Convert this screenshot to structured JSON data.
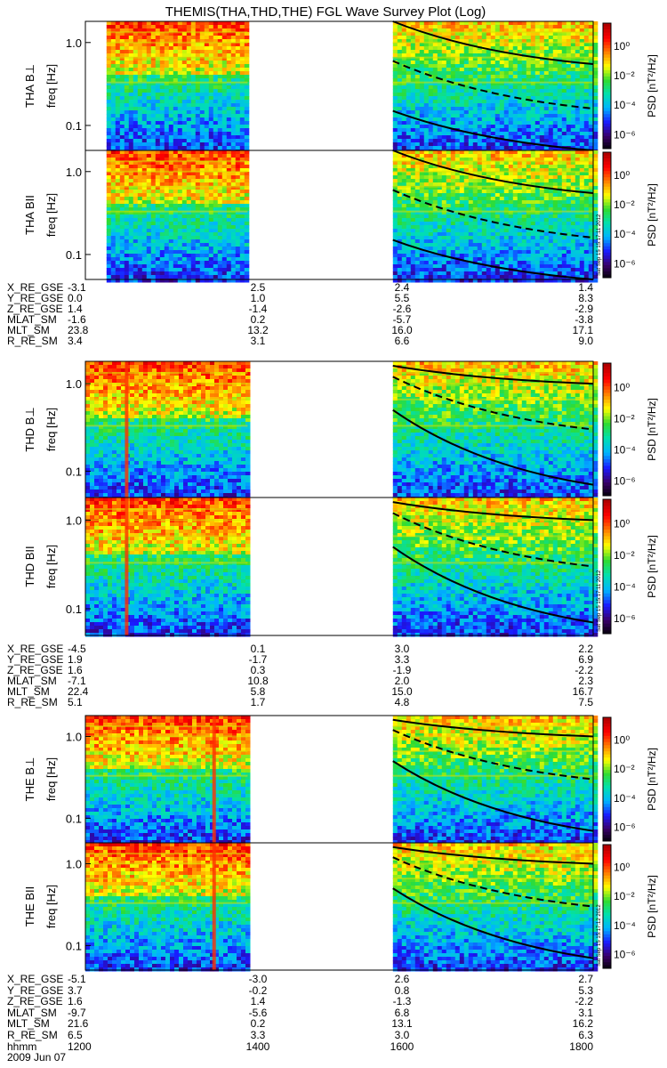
{
  "title": "THEMIS(THA,THD,THE) FGL Wave Survey Plot (Log)",
  "colorbar": {
    "label": "PSD [nT²/Hz]",
    "ticks": [
      "10⁰",
      "10⁻²",
      "10⁻⁴",
      "10⁻⁶"
    ],
    "log_range": [
      -7,
      1.5
    ],
    "colors": [
      "#000000",
      "#3a006a",
      "#1a1aff",
      "#00b4ff",
      "#00e0b0",
      "#30dc30",
      "#ffff00",
      "#ff8000",
      "#ff0000",
      "#b00000"
    ]
  },
  "side_labels": [
    "Sat Sep 15 15:17:11 2012",
    "Sat Sep 15 15:17:11 2012",
    "Sat Sep 15 15:17:12 2012"
  ],
  "footer": {
    "time_label": "hhmm",
    "date": "2009 Jun 07"
  },
  "chart_data": {
    "type": "heatmap",
    "x_range_hhmm": [
      1200,
      1800
    ],
    "y_scale": "log",
    "y_range_hz": [
      0.05,
      1.8
    ],
    "y_ticks": [
      {
        "value": 1.0,
        "label": "1.0"
      },
      {
        "value": 0.1,
        "label": "0.1"
      }
    ],
    "x_tick_times": [
      1200,
      1400,
      1600,
      1800
    ],
    "probes": [
      {
        "panels": [
          {
            "ylabel": "THA B⊥",
            "ylabel2": "freq [Hz]"
          },
          {
            "ylabel": "THA BII",
            "ylabel2": "freq [Hz]"
          }
        ],
        "data_intervals": [
          [
            1215,
            1355
          ],
          [
            1538,
            1800
          ]
        ],
        "spike_times": [],
        "ephemeris": [
          {
            "label": "X_RE_GSE",
            "values": [
              "-3.1",
              "2.5",
              "2.4",
              "1.4"
            ]
          },
          {
            "label": "Y_RE_GSE",
            "values": [
              "0.0",
              "1.0",
              "5.5",
              "8.3"
            ]
          },
          {
            "label": "Z_RE_GSE",
            "values": [
              "1.4",
              "-1.4",
              "-2.6",
              "-2.9"
            ]
          },
          {
            "label": "MLAT_SM",
            "values": [
              "-1.6",
              "0.2",
              "-5.7",
              "-3.8"
            ]
          },
          {
            "label": "MLT_SM",
            "values": [
              "23.8",
              "13.2",
              "16.0",
              "17.1"
            ]
          },
          {
            "label": "R_RE_SM",
            "values": [
              "3.4",
              "3.1",
              "6.6",
              "9.0"
            ]
          }
        ]
      },
      {
        "panels": [
          {
            "ylabel": "THD B⊥",
            "ylabel2": "freq [Hz]"
          },
          {
            "ylabel": "THD BII",
            "ylabel2": "freq [Hz]"
          }
        ],
        "data_intervals": [
          [
            1200,
            1355
          ],
          [
            1538,
            1800
          ]
        ],
        "spike_times": [
          1228
        ],
        "ephemeris": [
          {
            "label": "X_RE_GSE",
            "values": [
              "-4.5",
              "0.1",
              "3.0",
              "2.2"
            ]
          },
          {
            "label": "Y_RE_GSE",
            "values": [
              "1.9",
              "-1.7",
              "3.3",
              "6.9"
            ]
          },
          {
            "label": "Z_RE_GSE",
            "values": [
              "1.6",
              "0.3",
              "-1.9",
              "-2.2"
            ]
          },
          {
            "label": "MLAT_SM",
            "values": [
              "-7.1",
              "10.8",
              "2.0",
              "2.3"
            ]
          },
          {
            "label": "MLT_SM",
            "values": [
              "22.4",
              "5.8",
              "15.0",
              "16.7"
            ]
          },
          {
            "label": "R_RE_SM",
            "values": [
              "5.1",
              "1.7",
              "4.8",
              "7.5"
            ]
          }
        ]
      },
      {
        "panels": [
          {
            "ylabel": "THE B⊥",
            "ylabel2": "freq [Hz]"
          },
          {
            "ylabel": "THE BII",
            "ylabel2": "freq [Hz]"
          }
        ],
        "data_intervals": [
          [
            1200,
            1355
          ],
          [
            1538,
            1800
          ]
        ],
        "spike_times": [
          1330
        ],
        "ephemeris": [
          {
            "label": "X_RE_GSE",
            "values": [
              "-5.1",
              "-3.0",
              "2.6",
              "2.7"
            ]
          },
          {
            "label": "Y_RE_GSE",
            "values": [
              "3.7",
              "-0.2",
              "0.8",
              "5.3"
            ]
          },
          {
            "label": "Z_RE_GSE",
            "values": [
              "1.6",
              "1.4",
              "-1.3",
              "-2.2"
            ]
          },
          {
            "label": "MLAT_SM",
            "values": [
              "-9.7",
              "-5.6",
              "6.8",
              "3.1"
            ]
          },
          {
            "label": "MLT_SM",
            "values": [
              "21.6",
              "0.2",
              "13.1",
              "16.2"
            ]
          },
          {
            "label": "R_RE_SM",
            "values": [
              "6.5",
              "3.3",
              "3.0",
              "6.3"
            ]
          }
        ]
      }
    ]
  }
}
